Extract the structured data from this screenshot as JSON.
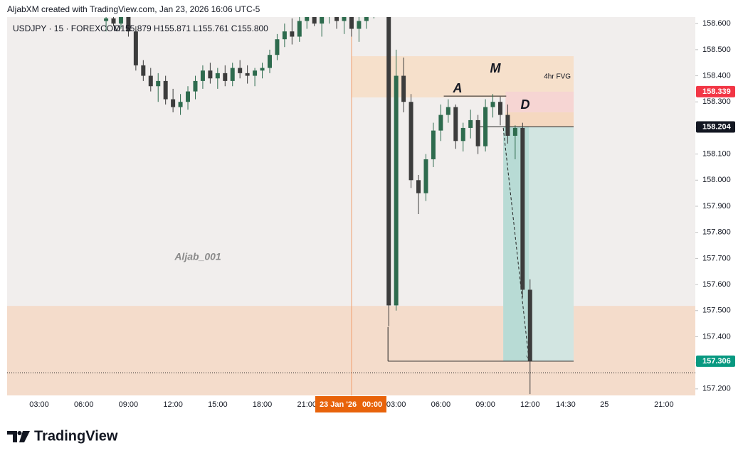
{
  "header": {
    "attribution": "AljabXM created with TradingView.com, Jan 23, 2026 16:06 UTC-5",
    "logo": "TradingView"
  },
  "chart_data": {
    "type": "candlestick",
    "legend": "USDJPY · 15 · FOREXCOM",
    "ohlc_text": "O155.879 H155.871 L155.761 C155.800",
    "up_color": "#2e6b4e",
    "down_color": "#3c3c3c",
    "x": [
      7.5,
      8,
      8.5,
      9,
      9.5,
      10,
      10.5,
      11,
      11.5,
      12,
      12.5,
      13,
      13.5,
      14,
      14.5,
      15,
      15.5,
      16,
      16.5,
      17,
      17.5,
      18,
      18.5,
      19,
      19.5,
      20,
      20.5,
      21,
      21.5,
      22,
      22.5,
      23,
      23.5,
      24,
      24.5,
      25,
      25.5,
      26,
      26.5,
      27,
      27.5,
      28,
      28.5,
      29,
      29.5,
      30,
      30.5,
      31,
      31.5,
      32,
      32.5,
      33,
      33.5,
      34,
      34.5,
      35,
      35.5,
      36
    ],
    "open": [
      158.61,
      158.62,
      158.6,
      158.63,
      158.57,
      158.44,
      158.4,
      158.36,
      158.38,
      158.31,
      158.28,
      158.3,
      158.34,
      158.38,
      158.42,
      158.39,
      158.41,
      158.38,
      158.43,
      158.41,
      158.4,
      158.42,
      158.43,
      158.48,
      158.54,
      158.57,
      158.55,
      158.61,
      158.64,
      158.6,
      158.63,
      158.66,
      158.61,
      158.64,
      158.58,
      158.61,
      158.64,
      158.7,
      158.72,
      157.52,
      158.4,
      158.3,
      158.0,
      157.95,
      158.08,
      158.19,
      158.25,
      158.28,
      158.15,
      158.2,
      158.23,
      158.13,
      158.28,
      158.3,
      158.25,
      158.17,
      158.2,
      157.58
    ],
    "high": [
      158.64,
      158.66,
      158.65,
      158.66,
      158.59,
      158.46,
      158.43,
      158.41,
      158.4,
      158.35,
      158.33,
      158.36,
      158.4,
      158.44,
      158.45,
      158.43,
      158.44,
      158.45,
      158.46,
      158.44,
      158.43,
      158.45,
      158.5,
      158.56,
      158.6,
      158.62,
      158.63,
      158.66,
      158.67,
      158.65,
      158.68,
      158.69,
      158.66,
      158.67,
      158.63,
      158.66,
      158.72,
      158.76,
      158.75,
      158.5,
      158.47,
      158.33,
      158.02,
      158.1,
      158.22,
      158.29,
      158.31,
      158.29,
      158.22,
      158.27,
      158.25,
      158.31,
      158.33,
      158.32,
      158.29,
      158.21,
      158.22,
      157.62
    ],
    "low": [
      158.57,
      158.59,
      158.58,
      158.55,
      158.42,
      158.38,
      158.34,
      158.3,
      158.29,
      158.26,
      158.25,
      158.27,
      158.31,
      158.35,
      158.37,
      158.35,
      158.36,
      158.36,
      158.39,
      158.37,
      158.36,
      158.39,
      158.41,
      158.46,
      158.51,
      158.52,
      158.53,
      158.58,
      158.59,
      158.55,
      158.6,
      158.58,
      158.56,
      158.55,
      158.53,
      158.58,
      158.62,
      158.66,
      157.44,
      157.5,
      158.26,
      157.97,
      157.87,
      157.92,
      158.05,
      158.15,
      158.22,
      158.12,
      158.11,
      158.16,
      158.1,
      158.11,
      158.24,
      158.21,
      158.14,
      158.08,
      157.55,
      157.18
    ],
    "close": [
      158.62,
      158.6,
      158.63,
      158.57,
      158.44,
      158.4,
      158.36,
      158.38,
      158.31,
      158.28,
      158.3,
      158.34,
      158.38,
      158.42,
      158.39,
      158.41,
      158.38,
      158.43,
      158.41,
      158.4,
      158.42,
      158.43,
      158.48,
      158.54,
      158.57,
      158.55,
      158.61,
      158.64,
      158.6,
      158.63,
      158.66,
      158.61,
      158.64,
      158.58,
      158.61,
      158.64,
      158.7,
      158.72,
      157.52,
      158.4,
      158.3,
      158.0,
      157.95,
      158.08,
      158.19,
      158.25,
      158.28,
      158.15,
      158.2,
      158.23,
      158.13,
      158.28,
      158.3,
      158.25,
      158.17,
      158.2,
      157.58,
      157.306
    ],
    "xlim": [
      0.847,
      47.11
    ],
    "xticks": [
      {
        "value": 3,
        "label": "03:00"
      },
      {
        "value": 6,
        "label": "06:00"
      },
      {
        "value": 9,
        "label": "09:00"
      },
      {
        "value": 12,
        "label": "12:00"
      },
      {
        "value": 15,
        "label": "15:00"
      },
      {
        "value": 18,
        "label": "18:00"
      },
      {
        "value": 21,
        "label": "21:00"
      },
      {
        "value": 27,
        "label": "03:00"
      },
      {
        "value": 30,
        "label": "06:00"
      },
      {
        "value": 33,
        "label": "09:00"
      },
      {
        "value": 36,
        "label": "12:00"
      },
      {
        "value": 38.4,
        "label": "14:30"
      },
      {
        "value": 41,
        "label": "25"
      },
      {
        "value": 45,
        "label": "21:00"
      }
    ],
    "crosshair": {
      "x": 24,
      "date_label": "23 Jan '26",
      "time_label": "00:00"
    },
    "ylim": [
      157.175,
      158.625
    ],
    "yticks": [
      {
        "value": 157.2,
        "label": "157.200"
      },
      {
        "value": 157.3,
        "label": "157.300"
      },
      {
        "value": 157.4,
        "label": "157.400"
      },
      {
        "value": 157.5,
        "label": "157.500"
      },
      {
        "value": 157.6,
        "label": "157.600"
      },
      {
        "value": 157.7,
        "label": "157.700"
      },
      {
        "value": 157.8,
        "label": "157.800"
      },
      {
        "value": 157.9,
        "label": "157.900"
      },
      {
        "value": 158.0,
        "label": "158.000"
      },
      {
        "value": 158.1,
        "label": "158.100"
      },
      {
        "value": 158.2,
        "label": "158.200"
      },
      {
        "value": 158.3,
        "label": "158.300"
      },
      {
        "value": 158.4,
        "label": "158.400"
      },
      {
        "value": 158.5,
        "label": "158.500"
      },
      {
        "value": 158.6,
        "label": "158.600"
      }
    ],
    "price_labels": [
      {
        "value": 158.339,
        "color": "#f23645"
      },
      {
        "value": 158.204,
        "color": "#131722"
      },
      {
        "value": 157.306,
        "color": "#089981"
      }
    ],
    "zones": [
      {
        "xlim": [
          0.847,
          47.11
        ],
        "ylim": [
          157.175,
          157.518
        ],
        "color": "#f4dccb"
      },
      {
        "xlim": [
          24,
          38.93
        ],
        "ylim": [
          158.317,
          158.475
        ],
        "color": "#f6e0cb",
        "label": "4hr FVG"
      },
      {
        "xlim": [
          34.35,
          38.93
        ],
        "ylim": [
          158.26,
          158.339
        ],
        "color": "#f6d5d3"
      },
      {
        "xlim": [
          34.35,
          38.93
        ],
        "ylim": [
          158.204,
          158.26
        ],
        "color": "#f5d8c0"
      },
      {
        "xlim": [
          34.2,
          38.93
        ],
        "ylim": [
          157.306,
          158.204
        ],
        "color": "#d2e5e1"
      },
      {
        "xlim": [
          34.2,
          35.92
        ],
        "ylim": [
          157.306,
          158.204
        ],
        "color": "#b8dbd5"
      }
    ],
    "lines": [
      {
        "x": [
          30.2,
          34.4
        ],
        "y": [
          158.322,
          158.322
        ],
        "style": "solid"
      },
      {
        "x": [
          32.4,
          38.93
        ],
        "y": [
          158.205,
          158.205
        ],
        "style": "solid"
      },
      {
        "x": [
          26.45,
          38.93
        ],
        "y": [
          157.306,
          157.306
        ],
        "style": "solid"
      },
      {
        "x": [
          26.45,
          26.45
        ],
        "y": [
          157.437,
          157.306
        ],
        "style": "solid"
      },
      {
        "x": [
          34.2,
          35.92
        ],
        "y": [
          158.2,
          157.314
        ],
        "style": "dashed"
      },
      {
        "x": [
          0.847,
          47.11
        ],
        "y": [
          157.262,
          157.262
        ],
        "style": "dotted"
      }
    ],
    "annotations": [
      "A",
      "M",
      "D",
      "Aljab_001"
    ]
  }
}
